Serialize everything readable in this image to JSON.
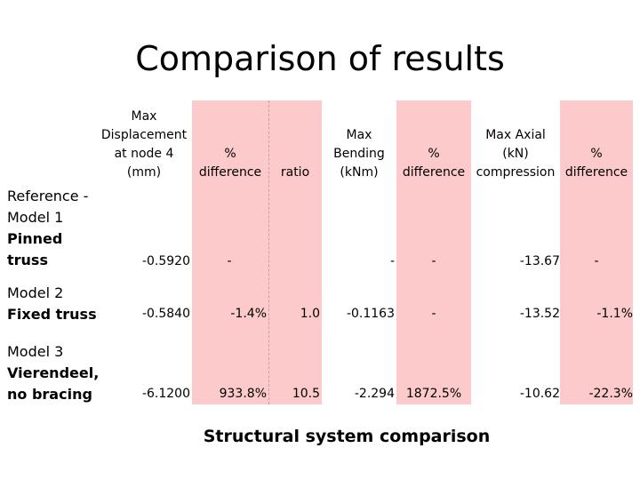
{
  "title": "Comparison of results",
  "caption": "Structural system comparison",
  "headers": {
    "disp": [
      "Max",
      "Displacement",
      "at node 4",
      "(mm)"
    ],
    "pct1": [
      "%",
      "difference"
    ],
    "ratio": [
      "ratio"
    ],
    "bend": [
      "Max",
      "Bending",
      "(kNm)"
    ],
    "pct2": [
      "%",
      "difference"
    ],
    "axial": [
      "Max Axial",
      "(kN)",
      "compression"
    ],
    "pct3": [
      "%",
      "difference"
    ]
  },
  "rows": [
    {
      "label_lines": [
        "Reference -",
        "Model 1"
      ],
      "label_bold": [
        "Pinned",
        "truss"
      ],
      "disp": "-0.5920",
      "pct1": "-",
      "ratio": "",
      "bend": "-",
      "pct2": "-",
      "axial": "-13.67",
      "pct3": "-"
    },
    {
      "label_lines": [
        "Model 2"
      ],
      "label_bold": [
        "Fixed truss"
      ],
      "disp": "-0.5840",
      "pct1": "-1.4%",
      "ratio": "1.0",
      "bend": "-0.1163",
      "pct2": "-",
      "axial": "-13.52",
      "pct3": "-1.1%"
    },
    {
      "label_lines": [
        "Model 3"
      ],
      "label_bold": [
        "Vierendeel,",
        "no bracing"
      ],
      "disp": "-6.1200",
      "pct1": "933.8%",
      "ratio": "10.5",
      "bend": "-2.294",
      "pct2": "1872.5%",
      "axial": "-10.62",
      "pct3": "-22.3%"
    }
  ]
}
